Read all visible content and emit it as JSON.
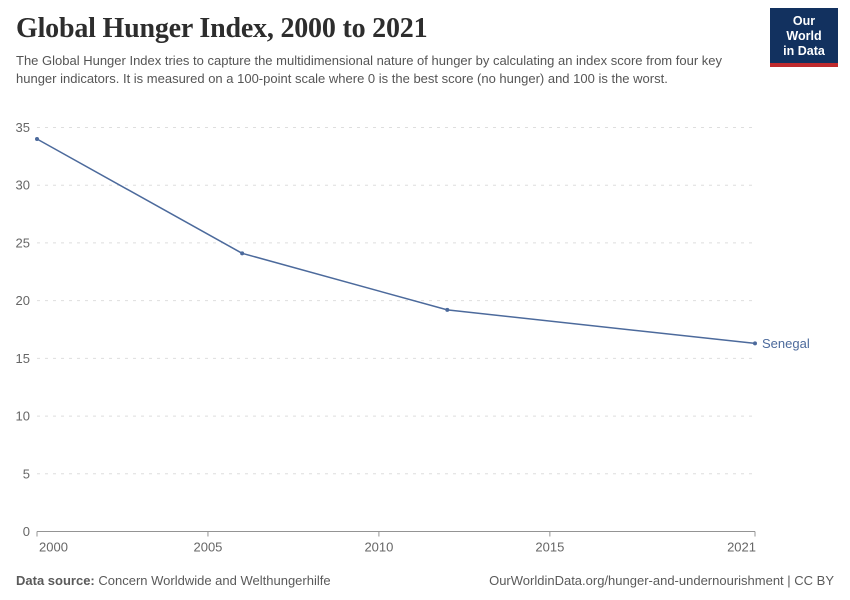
{
  "header": {
    "title": "Global Hunger Index, 2000 to 2021",
    "subtitle": "The Global Hunger Index tries to capture the multidimensional nature of hunger by calculating an index score from four key hunger indicators. It is measured on a 100-point scale where 0 is the best score (no hunger) and 100 is the worst.",
    "logo_line1": "Our World",
    "logo_line2": "in Data"
  },
  "chart_data": {
    "type": "line",
    "title": "Global Hunger Index, 2000 to 2021",
    "series": [
      {
        "name": "Senegal",
        "color": "#4C6A9C",
        "x": [
          2000,
          2006,
          2012,
          2021
        ],
        "values": [
          34.0,
          24.1,
          19.2,
          16.3
        ]
      }
    ],
    "end_label": "Senegal",
    "xlabel": "",
    "ylabel": "",
    "x_ticks": [
      2000,
      2005,
      2010,
      2015,
      2021
    ],
    "y_ticks": [
      0,
      5,
      10,
      15,
      20,
      25,
      30,
      35
    ],
    "xlim": [
      2000,
      2021
    ],
    "ylim": [
      0,
      35
    ],
    "grid": "horizontal dashed",
    "legend_position": "end-of-line label"
  },
  "footer": {
    "source_label": "Data source:",
    "source_value": "Concern Worldwide and Welthungerhilfe",
    "link": "OurWorldinData.org/hunger-and-undernourishment | CC BY"
  },
  "colors": {
    "line": "#4C6A9C",
    "logo_bg": "#12315F",
    "logo_red": "#BF2A2D",
    "grid": "#DEDEDE",
    "axis": "#949494",
    "tick_label": "#666666",
    "title": "#2D2D2D",
    "subtitle": "#555555",
    "footer": "#5A5A5A"
  }
}
